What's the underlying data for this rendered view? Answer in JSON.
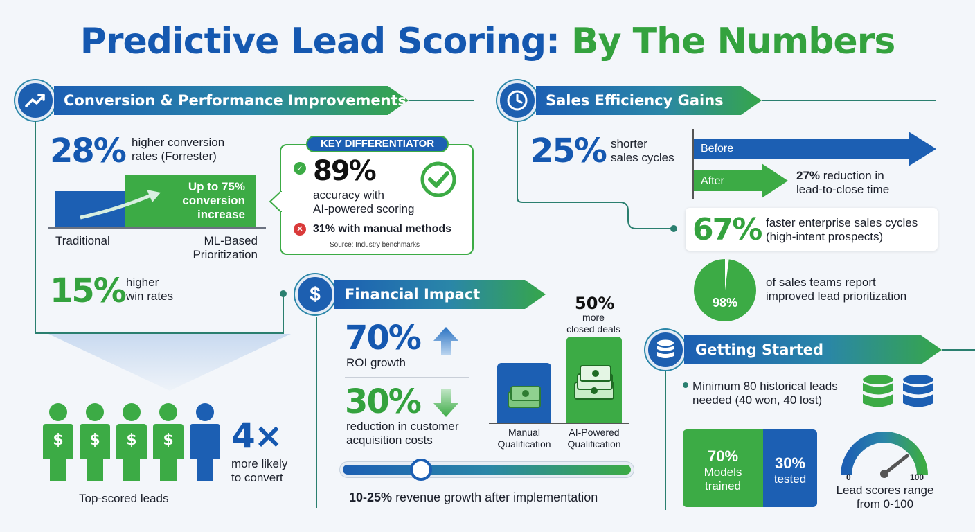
{
  "title": {
    "part1": "Predictive Lead Scoring:",
    "part2": "By The Numbers"
  },
  "conversion": {
    "header": "Conversion & Performance Improvements",
    "stat1": {
      "value": "28%",
      "text1": "higher conversion",
      "text2": "rates (Forrester)"
    },
    "bar": {
      "green_line1": "Up to 75%",
      "green_line2": "conversion",
      "green_line3": "increase",
      "label_left": "Traditional",
      "label_right1": "ML-Based",
      "label_right2": "Prioritization"
    },
    "stat2": {
      "value": "15%",
      "text1": "higher",
      "text2": "win rates"
    }
  },
  "key": {
    "label": "KEY DIFFERENTIATOR",
    "value": "89%",
    "text1": "accuracy with",
    "text2": "AI-powered scoring",
    "manual": "31% with manual methods",
    "source": "Source: Industry benchmarks"
  },
  "leads": {
    "value": "4×",
    "text1": "more likely",
    "text2": "to convert",
    "caption": "Top-scored leads"
  },
  "financial": {
    "header": "Financial Impact",
    "roi": {
      "value": "70%",
      "text": "ROI growth"
    },
    "cac": {
      "value": "30%",
      "text1": "reduction in customer",
      "text2": "acquisition costs"
    },
    "deals": {
      "value": "50%",
      "text1": "more",
      "text2": "closed deals"
    },
    "bars": {
      "manual1": "Manual",
      "manual2": "Qualification",
      "ai1": "AI-Powered",
      "ai2": "Qualification"
    },
    "slider": {
      "bold": "10-25%",
      "rest": "revenue growth after implementation"
    }
  },
  "efficiency": {
    "header": "Sales Efficiency Gains",
    "stat1": {
      "value": "25%",
      "text1": "shorter",
      "text2": "sales cycles"
    },
    "before": "Before",
    "after": "After",
    "reduction": {
      "bold": "27%",
      "rest": "reduction in",
      "line2": "lead-to-close time"
    },
    "stat2": {
      "value": "67%",
      "text1": "faster enterprise sales cycles",
      "text2": "(high-intent prospects)"
    },
    "pie": {
      "value": "98%",
      "text1": "of sales teams report",
      "text2": "improved lead prioritization",
      "fraction": 0.98
    }
  },
  "started": {
    "header": "Getting Started",
    "bullet1": "Minimum 80 historical leads",
    "bullet2": "needed (40 won, 40 lost)",
    "train": {
      "value": "70%",
      "text1": "Models",
      "text2": "trained"
    },
    "test": {
      "value": "30%",
      "text": "tested"
    },
    "gauge": {
      "min": "0",
      "max": "100",
      "text1": "Lead scores range",
      "text2": "from 0-100"
    }
  },
  "colors": {
    "blue": "#1558b0",
    "green": "#34a23e"
  }
}
